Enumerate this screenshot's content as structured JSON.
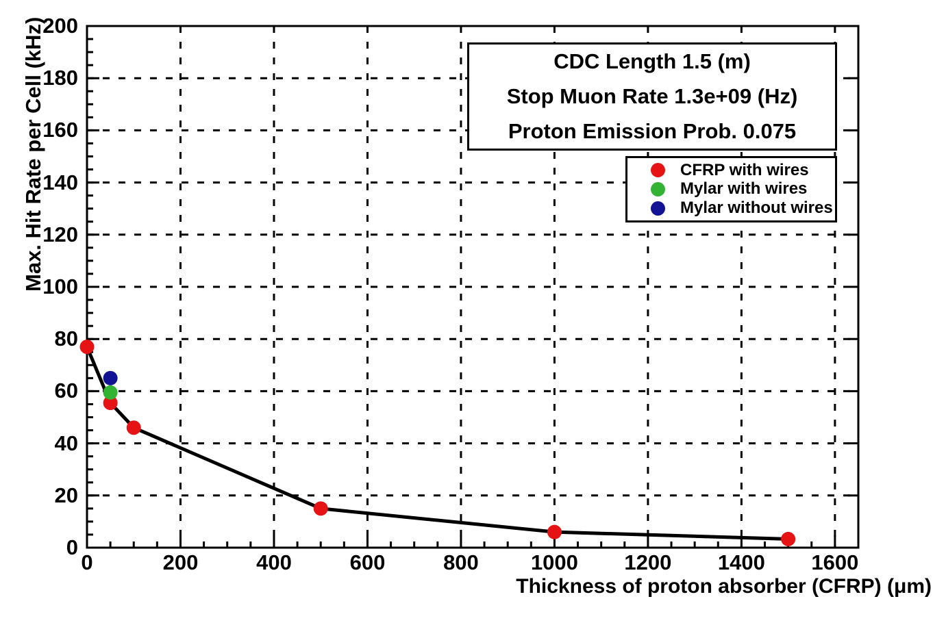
{
  "title_box": {
    "lines": [
      "CDC Length 1.5 (m)",
      "Stop Muon Rate 1.3e+09 (Hz)",
      "Proton Emission Prob. 0.075"
    ]
  },
  "legend": {
    "items": [
      {
        "label": "CFRP with wires",
        "color": "#e51313",
        "marker": "circle"
      },
      {
        "label": "Mylar with wires",
        "color": "#33b333",
        "marker": "circle"
      },
      {
        "label": "Mylar without wires",
        "color": "#121294",
        "marker": "circle"
      }
    ]
  },
  "chart_data": {
    "type": "scatter",
    "title": "",
    "xlabel": "Thickness of proton absorber (CFRP) (μm)",
    "ylabel": "Max. Hit Rate per Cell (kHz)",
    "xlim": [
      0,
      1650
    ],
    "ylim": [
      0,
      200
    ],
    "x_major_step": 200,
    "x_minor_step": 50,
    "y_major_step": 20,
    "y_minor_step": 5,
    "x_tick_labels": [
      "0",
      "200",
      "400",
      "600",
      "800",
      "1000",
      "1200",
      "1400",
      "1600"
    ],
    "y_tick_labels": [
      "0",
      "20",
      "40",
      "60",
      "80",
      "100",
      "120",
      "140",
      "160",
      "180",
      "200"
    ],
    "grid": "dashed, both axes, at major ticks",
    "legend_position": "top-right",
    "colors": {
      "line": "#000000",
      "grid": "#000000",
      "frame": "#000000"
    },
    "series": [
      {
        "name": "CFRP with wires",
        "color": "#e51313",
        "marker": "circle",
        "connected_line": true,
        "points": [
          [
            0,
            77
          ],
          [
            50,
            55.5
          ],
          [
            100,
            46
          ],
          [
            500,
            15
          ],
          [
            1000,
            6
          ],
          [
            1500,
            3.3
          ]
        ]
      },
      {
        "name": "Mylar with wires",
        "color": "#33b333",
        "marker": "circle",
        "connected_line": false,
        "points": [
          [
            50,
            59.5
          ]
        ]
      },
      {
        "name": "Mylar without wires",
        "color": "#121294",
        "marker": "circle",
        "connected_line": false,
        "points": [
          [
            50,
            65
          ]
        ]
      }
    ]
  }
}
